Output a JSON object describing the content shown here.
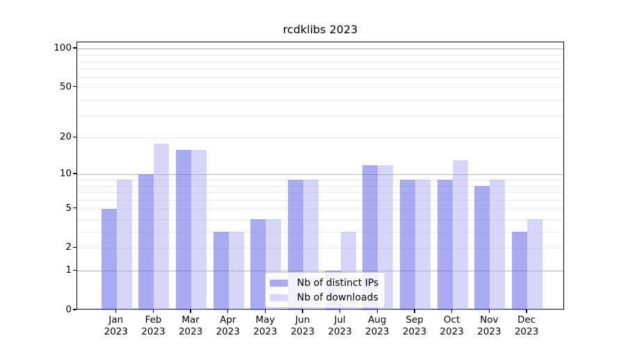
{
  "title": "rcdklibs 2023",
  "chart_data": {
    "type": "bar",
    "title": "rcdklibs 2023",
    "categories": [
      "Jan 2023",
      "Feb 2023",
      "Mar 2023",
      "Apr 2023",
      "May 2023",
      "Jun 2023",
      "Jul 2023",
      "Aug 2023",
      "Sep 2023",
      "Oct 2023",
      "Nov 2023",
      "Dec 2023"
    ],
    "months": [
      "Jan",
      "Feb",
      "Mar",
      "Apr",
      "May",
      "Jun",
      "Jul",
      "Aug",
      "Sep",
      "Oct",
      "Nov",
      "Dec"
    ],
    "year": "2023",
    "series": [
      {
        "name": "Nb of distinct IPs",
        "values": [
          5,
          10,
          16,
          3,
          4,
          9,
          1,
          12,
          9,
          9,
          8,
          3
        ],
        "fill": "rgba(103,103,228,0.56)",
        "legend_swatch": "#a9a9ef"
      },
      {
        "name": "Nb of downloads",
        "values": [
          9,
          18,
          16,
          3,
          4,
          9,
          3,
          12,
          9,
          13,
          9,
          4
        ],
        "fill": "rgba(161,161,238,0.44)",
        "legend_swatch": "#d6d6f6"
      }
    ],
    "y_scale": "log10(value+1)",
    "y_ticks": [
      0,
      1,
      2,
      5,
      10,
      20,
      50,
      100
    ],
    "y_minor_grid": [
      3,
      4,
      6,
      7,
      8,
      9,
      30,
      40,
      60,
      70,
      80,
      90
    ],
    "y_major_grid": [
      1,
      10,
      100
    ],
    "ylim": [
      0,
      112
    ],
    "xlabel": "",
    "ylabel": "",
    "grid": true,
    "legend_position": "lower center",
    "colors": {
      "bar_ips": "#adadf0",
      "bar_downloads": "#d7d7f7",
      "grid_major": "#b0b0b0",
      "grid_minor": "#e7e7e7",
      "spine": "#000000"
    }
  }
}
